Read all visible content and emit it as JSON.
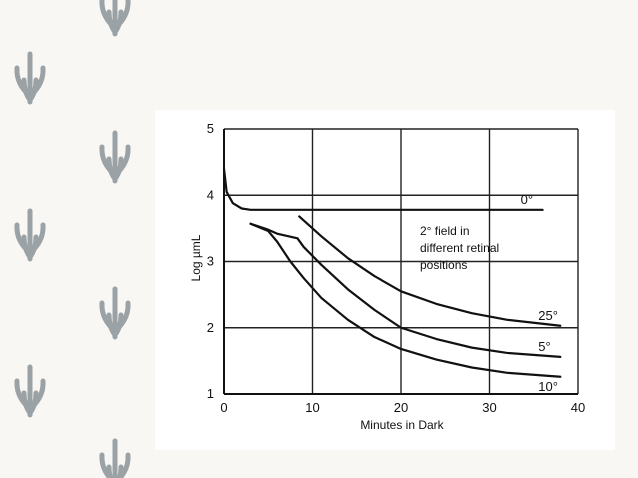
{
  "background": {
    "color": "#f8f7f4",
    "leaf_color": "#9aa2a5",
    "decoration_icon": "leaf-sprig-icon"
  },
  "chart_data": {
    "type": "line",
    "title": "",
    "xlabel": "Minutes in Dark",
    "ylabel": "Log µmL",
    "xlim": [
      0,
      40
    ],
    "ylim": [
      1,
      5
    ],
    "x_ticks": [
      0,
      10,
      20,
      30,
      40
    ],
    "y_ticks": [
      1,
      2,
      3,
      4,
      5
    ],
    "grid": true,
    "line_color": "#111111",
    "annotation": [
      "2° field in",
      "different retinal",
      "positions"
    ],
    "series": [
      {
        "name": "0°",
        "x": [
          0,
          0.3,
          1,
          2,
          3,
          5,
          10,
          20,
          30,
          36
        ],
        "y": [
          4.4,
          4.05,
          3.88,
          3.8,
          3.78,
          3.78,
          3.78,
          3.78,
          3.78,
          3.78
        ]
      },
      {
        "name": "25°",
        "x": [
          8.5,
          11,
          14,
          17,
          20,
          24,
          28,
          32,
          38
        ],
        "y": [
          3.68,
          3.38,
          3.05,
          2.78,
          2.55,
          2.36,
          2.22,
          2.12,
          2.03
        ]
      },
      {
        "name": "5°",
        "x": [
          3,
          5,
          6,
          8.3,
          9,
          11,
          14,
          17,
          20,
          24,
          28,
          32,
          38
        ],
        "y": [
          3.57,
          3.48,
          3.42,
          3.35,
          3.22,
          2.95,
          2.58,
          2.27,
          2.0,
          1.83,
          1.7,
          1.62,
          1.56
        ]
      },
      {
        "name": "10°",
        "x": [
          3,
          5,
          6,
          7.5,
          9,
          11,
          14,
          17,
          20,
          24,
          28,
          32,
          38
        ],
        "y": [
          3.57,
          3.46,
          3.3,
          3.0,
          2.75,
          2.45,
          2.12,
          1.86,
          1.68,
          1.52,
          1.4,
          1.32,
          1.26
        ]
      }
    ]
  }
}
